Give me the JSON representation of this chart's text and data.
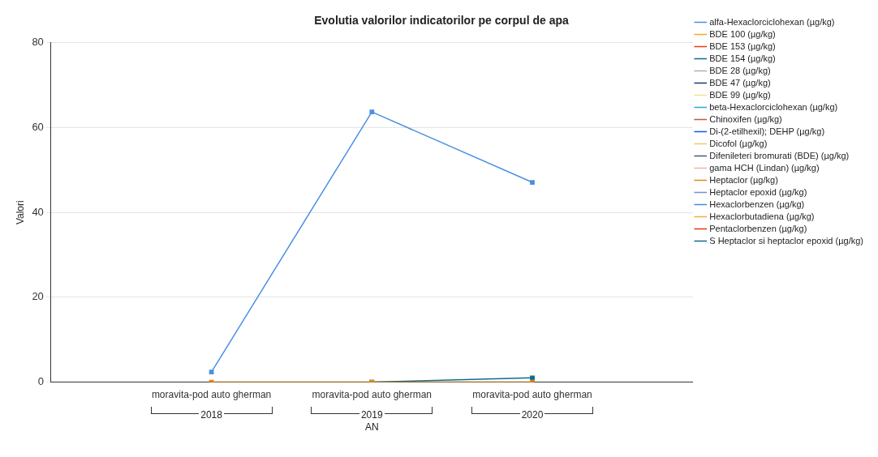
{
  "chart_data": {
    "type": "line",
    "title": "Evolutia valorilor indicatorilor pe corpul de apa",
    "xlabel": "AN",
    "ylabel": "Valori",
    "categories": [
      "moravita-pod auto gherman",
      "moravita-pod auto gherman",
      "moravita-pod auto gherman"
    ],
    "annotations": [
      "2018",
      "2019",
      "2020"
    ],
    "series": [
      {
        "name": "alfa-Hexaclorciclohexan (µg/kg)",
        "color": "#4a90e2",
        "values": [
          2.4,
          63.7,
          47.1
        ]
      },
      {
        "name": "BDE 100 (µg/kg)",
        "color": "#f5a623",
        "values": [
          null,
          null,
          null
        ]
      },
      {
        "name": "BDE 153 (µg/kg)",
        "color": "#e8400c",
        "values": [
          null,
          null,
          null
        ]
      },
      {
        "name": "BDE 154 (µg/kg)",
        "color": "#0b6a94",
        "values": [
          null,
          null,
          null
        ]
      },
      {
        "name": "BDE 28 (µg/kg)",
        "color": "#b0b0b0",
        "values": [
          null,
          null,
          null
        ]
      },
      {
        "name": "BDE 47 (µg/kg)",
        "color": "#1e3a6e",
        "values": [
          null,
          null,
          null
        ]
      },
      {
        "name": "BDE 99 (µg/kg)",
        "color": "#f8e08e",
        "values": [
          null,
          null,
          null
        ]
      },
      {
        "name": "beta-Hexaclorciclohexan (µg/kg)",
        "color": "#29a8e0",
        "values": [
          null,
          null,
          null
        ]
      },
      {
        "name": "Chinoxifen (µg/kg)",
        "color": "#c0583a",
        "values": [
          null,
          null,
          null
        ]
      },
      {
        "name": "Di-(2-etilhexil); DEHP (µg/kg)",
        "color": "#0a5ce6",
        "values": [
          null,
          null,
          null
        ]
      },
      {
        "name": "Dicofol (µg/kg)",
        "color": "#f2c777",
        "values": [
          null,
          null,
          null
        ]
      },
      {
        "name": "Difenileteri bromurati (BDE) (µg/kg)",
        "color": "#3f5a80",
        "values": [
          null,
          null,
          null
        ]
      },
      {
        "name": "gama HCH (Lindan) (µg/kg)",
        "color": "#f4b0a8",
        "values": [
          null,
          null,
          null
        ]
      },
      {
        "name": "Heptaclor (µg/kg)",
        "color": "#e8870c",
        "values": [
          0,
          0,
          0
        ]
      },
      {
        "name": "Heptaclor epoxid (µg/kg)",
        "color": "#7a8fd0",
        "values": [
          null,
          null,
          null
        ]
      },
      {
        "name": "Hexaclorbenzen (µg/kg)",
        "color": "#3d8ee8",
        "values": [
          null,
          null,
          null
        ]
      },
      {
        "name": "Hexaclorbutadiena (µg/kg)",
        "color": "#f9a93a",
        "values": [
          null,
          null,
          null
        ]
      },
      {
        "name": "Pentaclorbenzen (µg/kg)",
        "color": "#e23a0a",
        "values": [
          null,
          null,
          null
        ]
      },
      {
        "name": "S Heptaclor si heptaclor epoxid (µg/kg)",
        "color": "#0f6a90",
        "values": [
          null,
          0,
          1
        ]
      }
    ],
    "ylim": [
      0,
      80
    ],
    "yticks": [
      0,
      20,
      40,
      60,
      80
    ],
    "grid": "y",
    "legend": "top right",
    "marker": "square",
    "line_style": "solid"
  }
}
